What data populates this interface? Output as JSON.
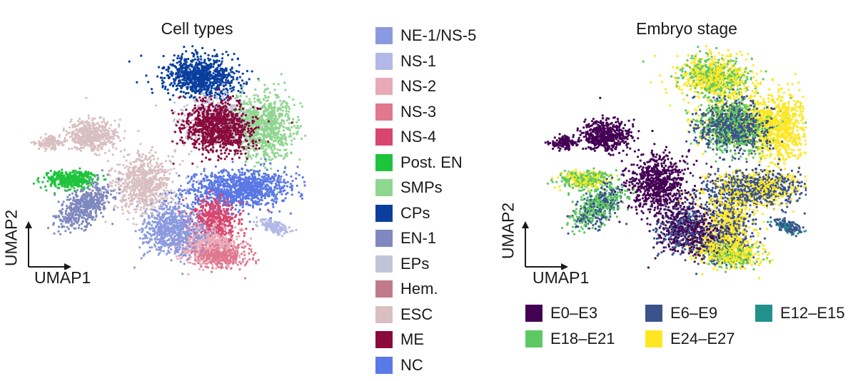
{
  "chart_data": [
    {
      "type": "scatter",
      "title": "Cell types",
      "xlabel": "UMAP1",
      "ylabel": "UMAP2",
      "grid": false,
      "legend_placement": "right",
      "legend": [
        {
          "name": "NE-1/NS-5",
          "color": "#8a9ae0"
        },
        {
          "name": "NS-1",
          "color": "#b3b8e6"
        },
        {
          "name": "NS-2",
          "color": "#e8aab8"
        },
        {
          "name": "NS-3",
          "color": "#e07890"
        },
        {
          "name": "NS-4",
          "color": "#d8456e"
        },
        {
          "name": "Post. EN",
          "color": "#1ec43c"
        },
        {
          "name": "SMPs",
          "color": "#8fd68f"
        },
        {
          "name": "CPs",
          "color": "#0a3f9e"
        },
        {
          "name": "EN-1",
          "color": "#7f89bf"
        },
        {
          "name": "EPs",
          "color": "#c3c4d8"
        },
        {
          "name": "Hem.",
          "color": "#c07a88"
        },
        {
          "name": "ESC",
          "color": "#d9bfc2"
        },
        {
          "name": "ME",
          "color": "#8a0a3c"
        },
        {
          "name": "NC",
          "color": "#5a78e6"
        }
      ]
    },
    {
      "type": "scatter",
      "title": "Embryo stage",
      "xlabel": "UMAP1",
      "ylabel": "UMAP2",
      "grid": false,
      "legend_placement": "bottom",
      "legend": [
        {
          "name": "E0–E3",
          "color": "#440154"
        },
        {
          "name": "E6–E9",
          "color": "#3b528b"
        },
        {
          "name": "E12–E15",
          "color": "#21918c"
        },
        {
          "name": "E18–E21",
          "color": "#5ec962"
        },
        {
          "name": "E24–E27",
          "color": "#fde725"
        }
      ]
    }
  ]
}
